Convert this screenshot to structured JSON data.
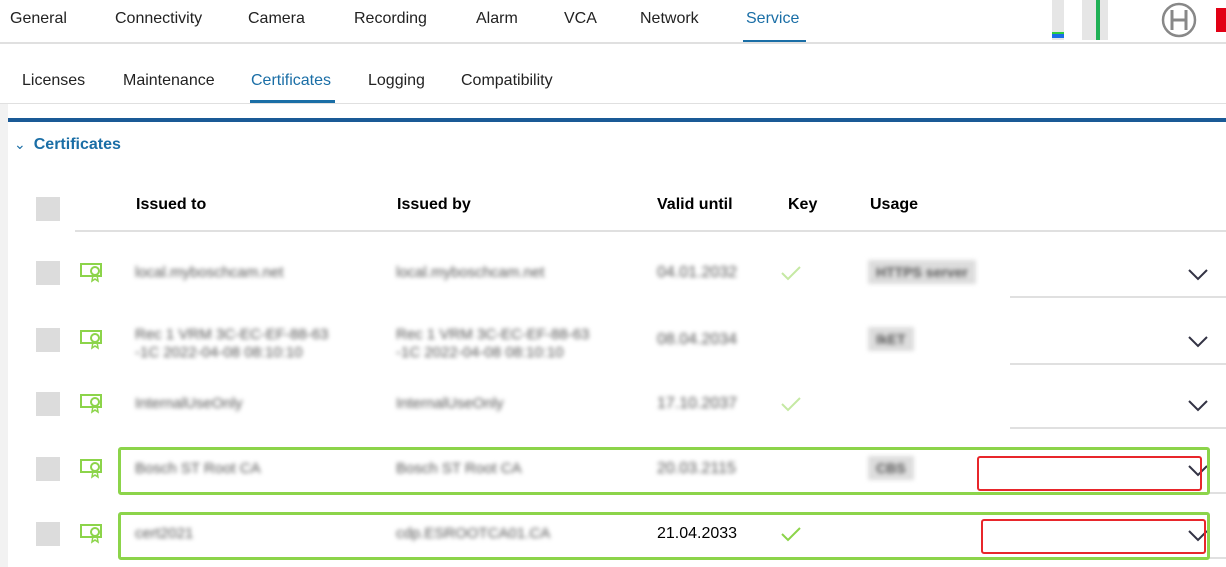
{
  "top_nav": {
    "tabs": [
      "General",
      "Connectivity",
      "Camera",
      "Recording",
      "Alarm",
      "VCA",
      "Network",
      "Service"
    ],
    "active": "Service"
  },
  "sub_nav": {
    "tabs": [
      "Licenses",
      "Maintenance",
      "Certificates",
      "Logging",
      "Compatibility"
    ],
    "active": "Certificates"
  },
  "section": {
    "title": "Certificates"
  },
  "table": {
    "headers": {
      "issued_to": "Issued to",
      "issued_by": "Issued by",
      "valid_until": "Valid until",
      "key": "Key",
      "usage": "Usage"
    },
    "rows": [
      {
        "issued_to": "local.myboschcam.net",
        "issued_by": "local.myboschcam.net",
        "valid_until": "04.01.2032",
        "key": true,
        "usage": "HTTPS server"
      },
      {
        "issued_to": "Rec 1 VRM 3C-EC-EF-88-63 -1C 2022-04-08 08:10:10",
        "issued_by": "Rec 1 VRM 3C-EC-EF-88-63 -1C 2022-04-08 08:10:10",
        "valid_until": "08.04.2034",
        "key": false,
        "usage": "IkET"
      },
      {
        "issued_to": "InternalUseOnly",
        "issued_by": "InternalUseOnly",
        "valid_until": "17.10.2037",
        "key": true,
        "usage": ""
      },
      {
        "issued_to": "Bosch ST Root CA",
        "issued_by": "Bosch ST Root CA",
        "valid_until": "20.03.2115",
        "key": false,
        "usage": "CBS"
      },
      {
        "issued_to": "cert2021",
        "issued_by": "cdp.ESROOTCA01.CA",
        "valid_until": "21.04.2033",
        "key": true,
        "usage": ""
      }
    ]
  },
  "colors": {
    "accent": "#1a6ea6",
    "cert_icon": "#8cd44a",
    "highlight_row": "#8cd44a",
    "highlight_box": "#e8262b",
    "brand_red": "#e20015"
  }
}
